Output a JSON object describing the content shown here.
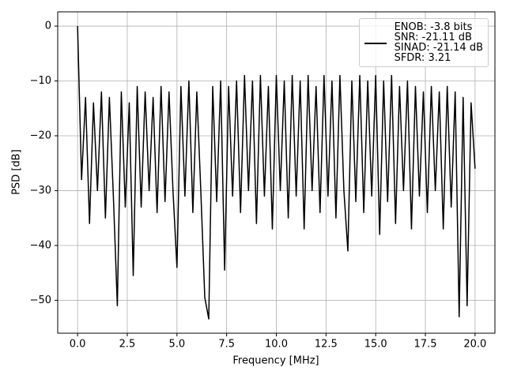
{
  "chart_data": {
    "type": "line",
    "xlabel": "Frequency [MHz]",
    "ylabel": "PSD [dB]",
    "x": [
      0,
      0.2,
      0.4,
      0.6,
      0.8,
      1.0,
      1.2,
      1.4,
      1.6,
      1.8,
      2.0,
      2.2,
      2.4,
      2.6,
      2.8,
      3.0,
      3.2,
      3.4,
      3.6,
      3.8,
      4.0,
      4.2,
      4.4,
      4.6,
      4.8,
      5.0,
      5.2,
      5.4,
      5.6,
      5.8,
      6.0,
      6.2,
      6.4,
      6.6,
      6.8,
      7.0,
      7.2,
      7.4,
      7.6,
      7.8,
      8.0,
      8.2,
      8.4,
      8.6,
      8.8,
      9.0,
      9.2,
      9.4,
      9.6,
      9.8,
      10.0,
      10.2,
      10.4,
      10.6,
      10.8,
      11.0,
      11.2,
      11.4,
      11.6,
      11.8,
      12.0,
      12.2,
      12.4,
      12.6,
      12.8,
      13.0,
      13.2,
      13.4,
      13.6,
      13.8,
      14.0,
      14.2,
      14.4,
      14.6,
      14.8,
      15.0,
      15.2,
      15.4,
      15.6,
      15.8,
      16.0,
      16.2,
      16.4,
      16.6,
      16.8,
      17.0,
      17.2,
      17.4,
      17.6,
      17.8,
      18.0,
      18.2,
      18.4,
      18.6,
      18.8,
      19.0,
      19.2,
      19.4,
      19.6,
      19.8,
      20.0
    ],
    "series": [
      {
        "name": "ENOB: -3.8 bits\nSNR: -21.11 dB\nSINAD: -21.14 dB\nSFDR: 3.21",
        "color": "#000000",
        "values": [
          0,
          -28,
          -13,
          -36,
          -14,
          -30,
          -12,
          -35,
          -13,
          -31,
          -51,
          -12,
          -33,
          -14,
          -45.5,
          -11,
          -33,
          -12,
          -30,
          -13,
          -34,
          -11,
          -32,
          -12,
          -30,
          -44,
          -11,
          -31,
          -10,
          -34,
          -12,
          -30,
          -49.5,
          -53.4,
          -11,
          -32,
          -10,
          -44.5,
          -11,
          -31,
          -10,
          -34,
          -9,
          -30,
          -10,
          -36,
          -9,
          -31,
          -11,
          -37,
          -9,
          -30,
          -10,
          -35,
          -9,
          -31,
          -10,
          -37,
          -9,
          -30,
          -11,
          -34,
          -9,
          -31,
          -10,
          -35,
          -9,
          -30,
          -41,
          -10,
          -32,
          -9,
          -34,
          -10,
          -31,
          -9,
          -38,
          -10,
          -32,
          -9,
          -36,
          -11,
          -30,
          -10,
          -37,
          -11,
          -31,
          -12,
          -34,
          -11,
          -30,
          -12,
          -37,
          -11,
          -33,
          -12,
          -53,
          -13,
          -51,
          -14,
          -26
        ]
      }
    ],
    "xlim": [
      -1,
      21
    ],
    "ylim": [
      -56,
      2.6
    ],
    "xticks": [
      {
        "value": 0,
        "label": "0.0"
      },
      {
        "value": 2.5,
        "label": "2.5"
      },
      {
        "value": 5,
        "label": "5.0"
      },
      {
        "value": 7.5,
        "label": "7.5"
      },
      {
        "value": 10,
        "label": "10.0"
      },
      {
        "value": 12.5,
        "label": "12.5"
      },
      {
        "value": 15,
        "label": "15.0"
      },
      {
        "value": 17.5,
        "label": "17.5"
      },
      {
        "value": 20,
        "label": "20.0"
      }
    ],
    "yticks": [
      {
        "value": -50,
        "label": "−50"
      },
      {
        "value": -40,
        "label": "−40"
      },
      {
        "value": -30,
        "label": "−30"
      },
      {
        "value": -20,
        "label": "−20"
      },
      {
        "value": -10,
        "label": "−10"
      },
      0
    ],
    "grid": true,
    "legend": "upper right"
  }
}
